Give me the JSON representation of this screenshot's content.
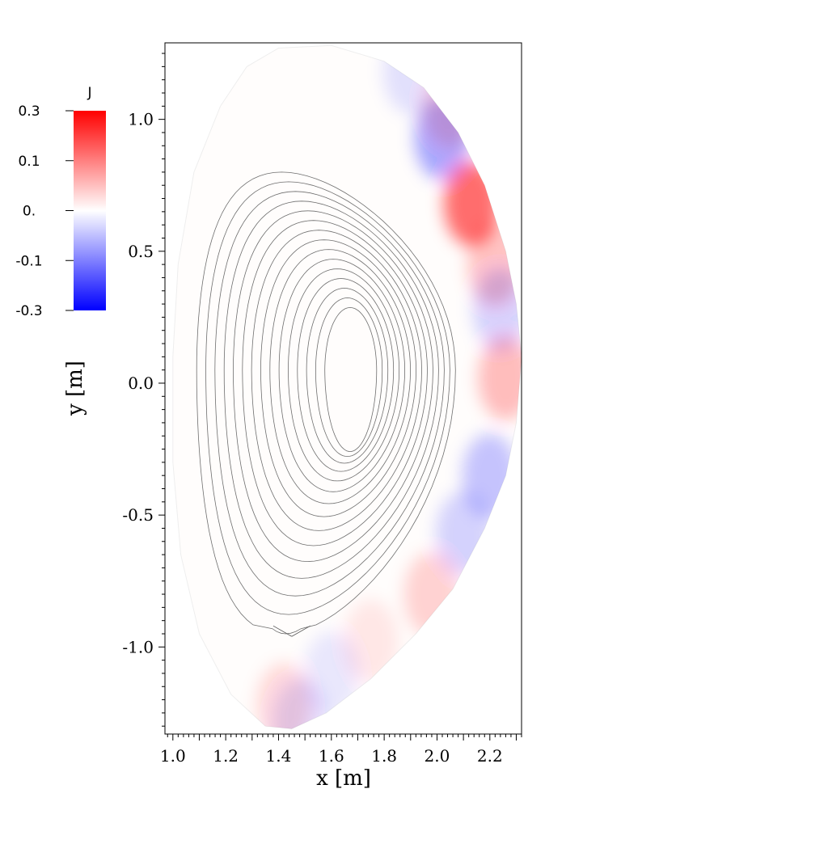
{
  "chart_data": {
    "type": "heatmap",
    "title": "",
    "xlabel": "x [m]",
    "ylabel": "y [m]",
    "xlim": [
      0.97,
      2.32
    ],
    "ylim": [
      -1.33,
      1.29
    ],
    "x_ticks": [
      1.0,
      1.2,
      1.4,
      1.6,
      1.8,
      2.0,
      2.2
    ],
    "x_tick_labels": [
      "1.0",
      "1.2",
      "1.4",
      "1.6",
      "1.8",
      "2.0",
      "2.2"
    ],
    "y_ticks": [
      1.0,
      0.5,
      0.0,
      -0.5,
      -1.0
    ],
    "y_tick_labels": [
      "1.0",
      "0.5",
      "0.0",
      "-0.5",
      "-1.0"
    ],
    "grid": false,
    "colorbar": {
      "label": "J",
      "range": [
        -0.3,
        0.3
      ],
      "ticks": [
        0.3,
        0.1,
        0.0,
        -0.1,
        -0.3
      ],
      "tick_labels": [
        "0.3",
        "0.1",
        "0.",
        "-0.1",
        "-0.3"
      ],
      "colors": {
        "max": "#ff0000",
        "mid": "#ffffff",
        "min": "#0000ff"
      },
      "position": "left"
    },
    "flux_contours": {
      "axis_center": [
        1.68,
        0.05
      ],
      "x_point": [
        1.45,
        -0.96
      ],
      "count": 15,
      "color": "#555555"
    },
    "current_blobs": [
      {
        "x": 2.02,
        "y": 0.93,
        "value": -0.12
      },
      {
        "x": 2.13,
        "y": 0.68,
        "value": 0.2
      },
      {
        "x": 2.22,
        "y": 0.45,
        "value": 0.08
      },
      {
        "x": 2.24,
        "y": 0.28,
        "value": -0.06
      },
      {
        "x": 2.26,
        "y": 0.02,
        "value": 0.09
      },
      {
        "x": 2.2,
        "y": -0.35,
        "value": -0.08
      },
      {
        "x": 2.1,
        "y": -0.57,
        "value": -0.06
      },
      {
        "x": 1.98,
        "y": -0.8,
        "value": 0.06
      },
      {
        "x": 1.75,
        "y": -0.98,
        "value": 0.03
      },
      {
        "x": 1.6,
        "y": -1.1,
        "value": -0.03
      },
      {
        "x": 1.42,
        "y": -1.22,
        "value": 0.05
      },
      {
        "x": 1.48,
        "y": -1.28,
        "value": -0.04
      },
      {
        "x": 1.9,
        "y": 1.18,
        "value": -0.04
      },
      {
        "x": 2.05,
        "y": 1.05,
        "value": 0.05
      }
    ]
  }
}
